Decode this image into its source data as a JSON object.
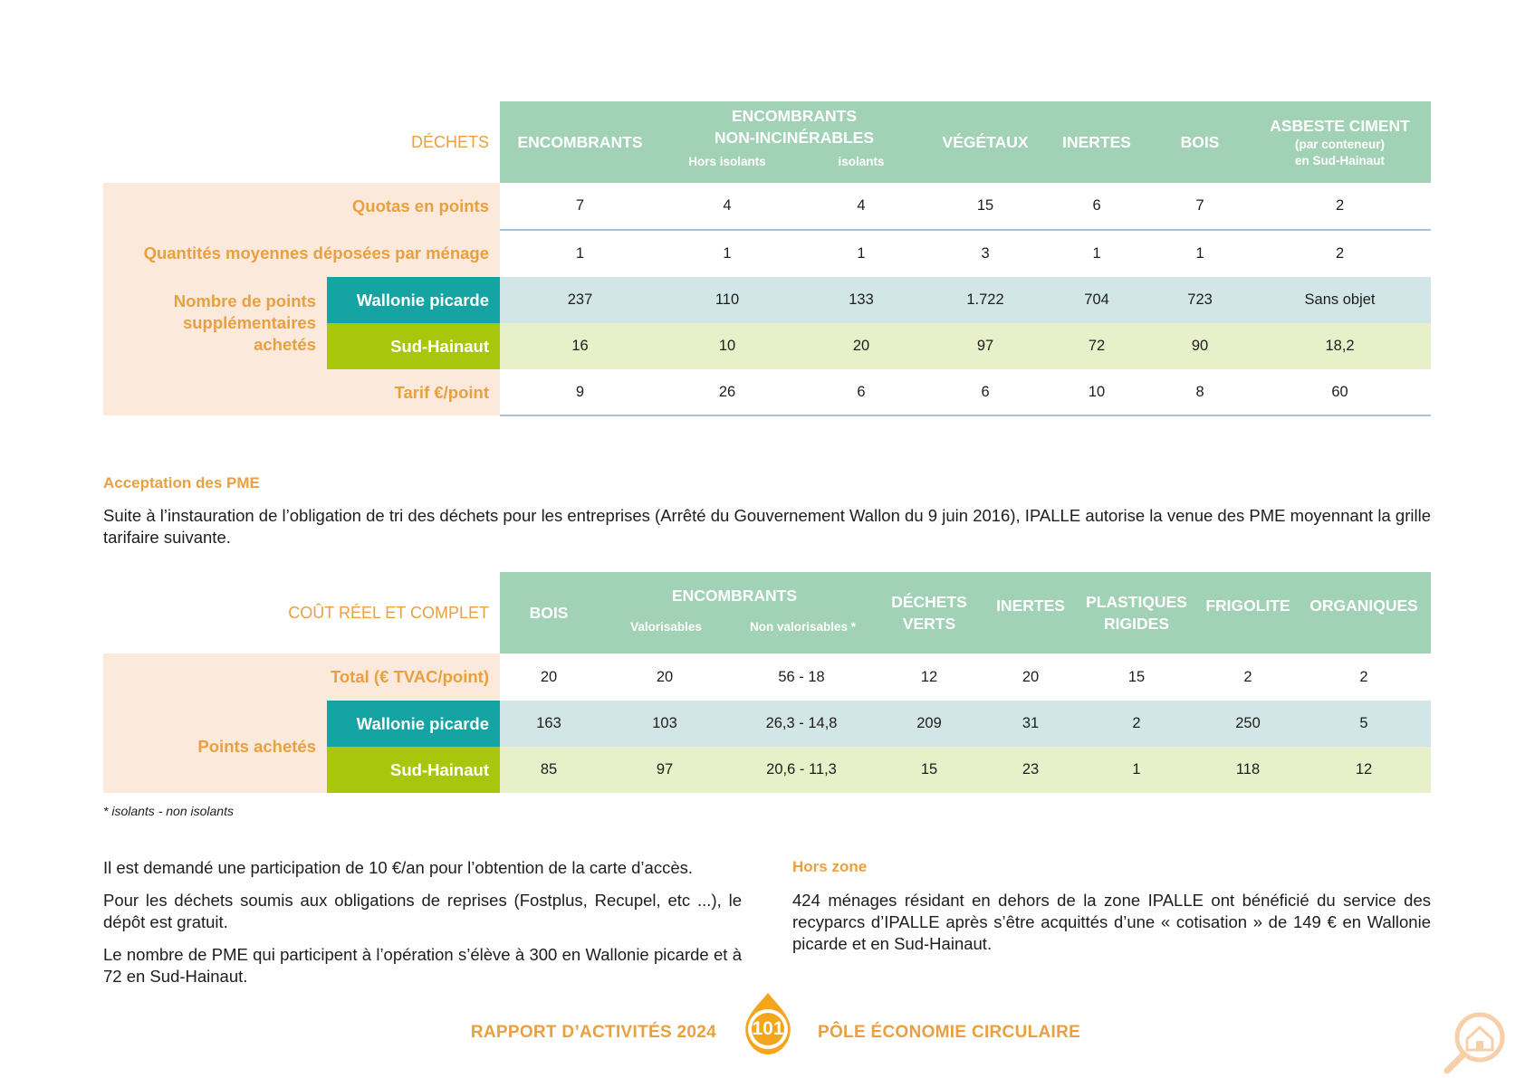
{
  "table1": {
    "corner": "DÉCHETS",
    "headers": {
      "encombrants": "ENCOMBRANTS",
      "nonincin_l1": "ENCOMBRANTS",
      "nonincin_l2": "NON-INCINÉRABLES",
      "hors_isolants": "Hors isolants",
      "isolants": "isolants",
      "vegetaux": "VÉGÉTAUX",
      "inertes": "INERTES",
      "bois": "BOIS",
      "asbeste_l1": "ASBESTE CIMENT",
      "asbeste_l2": "(par conteneur)",
      "asbeste_l3": "en Sud-Hainaut"
    },
    "rows": {
      "quotas": {
        "label": "Quotas en points",
        "values": [
          "7",
          "4",
          "4",
          "15",
          "6",
          "7",
          "2"
        ]
      },
      "quantites": {
        "label": "Quantités moyennes déposées par ménage",
        "values": [
          "1",
          "1",
          "1",
          "3",
          "1",
          "1",
          "2"
        ]
      },
      "points_label_l1": "Nombre de points",
      "points_label_l2": "supplémentaires",
      "points_label_l3": "achetés",
      "wallonie": {
        "label": "Wallonie picarde",
        "values": [
          "237",
          "110",
          "133",
          "1.722",
          "704",
          "723",
          "Sans objet"
        ]
      },
      "sudhainaut": {
        "label": "Sud-Hainaut",
        "values": [
          "16",
          "10",
          "20",
          "97",
          "72",
          "90",
          "18,2"
        ]
      },
      "tarif": {
        "label": "Tarif €/point",
        "values": [
          "9",
          "26",
          "6",
          "6",
          "10",
          "8",
          "60"
        ]
      }
    }
  },
  "section": {
    "title": "Acceptation des PME",
    "intro": "Suite à l’instauration de l’obligation de tri des déchets pour les entreprises (Arrêté du Gouvernement Wallon du 9 juin 2016), IPALLE autorise la venue des PME moyennant la grille tarifaire suivante."
  },
  "table2": {
    "corner": "COÛT RÉEL ET COMPLET",
    "headers": {
      "bois": "BOIS",
      "encombrants": "ENCOMBRANTS",
      "valorisables": "Valorisables",
      "non_valorisables": "Non valorisables *",
      "dechets_l1": "DÉCHETS",
      "dechets_l2": "VERTS",
      "inertes": "INERTES",
      "plastiques_l1": "PLASTIQUES",
      "plastiques_l2": "RIGIDES",
      "frigolite": "FRIGOLITE",
      "organiques": "ORGANIQUES"
    },
    "rows": {
      "total": {
        "label": "Total (€ TVAC/point)",
        "values": [
          "20",
          "20",
          "56 - 18",
          "12",
          "20",
          "15",
          "2",
          "2"
        ]
      },
      "points_label": "Points achetés",
      "wallonie": {
        "label": "Wallonie picarde",
        "values": [
          "163",
          "103",
          "26,3 - 14,8",
          "209",
          "31",
          "2",
          "250",
          "5"
        ]
      },
      "sudhainaut": {
        "label": "Sud-Hainaut",
        "values": [
          "85",
          "97",
          "20,6 - 11,3",
          "15",
          "23",
          "1",
          "118",
          "12"
        ]
      }
    }
  },
  "footnote": "* isolants - non isolants",
  "left_col": {
    "p1": "Il est demandé une participation de 10 €/an pour l’obtention de la carte d’accès.",
    "p2": "Pour les déchets soumis aux obligations de reprises (Fostplus, Recupel, etc ...), le dépôt est gratuit.",
    "p3": "Le nombre de PME qui participent à l’opération s’élève à 300 en Wallonie picarde et à 72 en Sud-Hainaut."
  },
  "right_col": {
    "title": "Hors zone",
    "p1": "424 ménages résidant en dehors de la zone IPALLE ont bénéficié du service des recyparcs d’IPALLE après s’être acquittés d’une « cotisation » de 149 € en Wallonie picarde et en Sud-Hainaut."
  },
  "footer": {
    "left": "RAPPORT D’ACTIVITÉS 2024",
    "page": "101",
    "right": "PÔLE ÉCONOMIE CIRCULAIRE"
  },
  "colors": {
    "header_green": "#a2d2b5",
    "orange": "#e8a040",
    "peach": "#fbe9dc",
    "teal": "#15a3a3",
    "lime": "#a8c60c",
    "teal_light": "#d3e6e7",
    "lime_light": "#e8f0c9"
  },
  "icons": [
    "drop-badge-icon",
    "magnifier-house-icon"
  ]
}
